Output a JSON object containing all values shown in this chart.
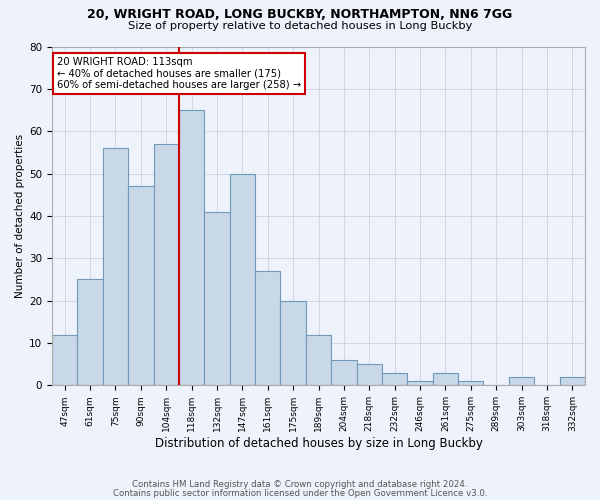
{
  "title1": "20, WRIGHT ROAD, LONG BUCKBY, NORTHAMPTON, NN6 7GG",
  "title2": "Size of property relative to detached houses in Long Buckby",
  "xlabel": "Distribution of detached houses by size in Long Buckby",
  "ylabel": "Number of detached properties",
  "categories": [
    "47sqm",
    "61sqm",
    "75sqm",
    "90sqm",
    "104sqm",
    "118sqm",
    "132sqm",
    "147sqm",
    "161sqm",
    "175sqm",
    "189sqm",
    "204sqm",
    "218sqm",
    "232sqm",
    "246sqm",
    "261sqm",
    "275sqm",
    "289sqm",
    "303sqm",
    "318sqm",
    "332sqm"
  ],
  "values": [
    12,
    25,
    56,
    47,
    57,
    65,
    41,
    50,
    27,
    20,
    12,
    6,
    5,
    3,
    1,
    3,
    1,
    0,
    2,
    0,
    2
  ],
  "bar_color": "#c8d8e8",
  "bar_edge_color": "#7098b8",
  "vline_x_index": 5.0,
  "vline_color": "#cc0000",
  "annotation_line1": "20 WRIGHT ROAD: 113sqm",
  "annotation_line2": "← 40% of detached houses are smaller (175)",
  "annotation_line3": "60% of semi-detached houses are larger (258) →",
  "annotation_box_color": "#ffffff",
  "annotation_box_edge_color": "#cc0000",
  "ylim": [
    0,
    80
  ],
  "yticks": [
    0,
    10,
    20,
    30,
    40,
    50,
    60,
    70,
    80
  ],
  "grid_color": "#d0d8e8",
  "footer1": "Contains HM Land Registry data © Crown copyright and database right 2024.",
  "footer2": "Contains public sector information licensed under the Open Government Licence v3.0.",
  "bg_color": "#eef2fa"
}
